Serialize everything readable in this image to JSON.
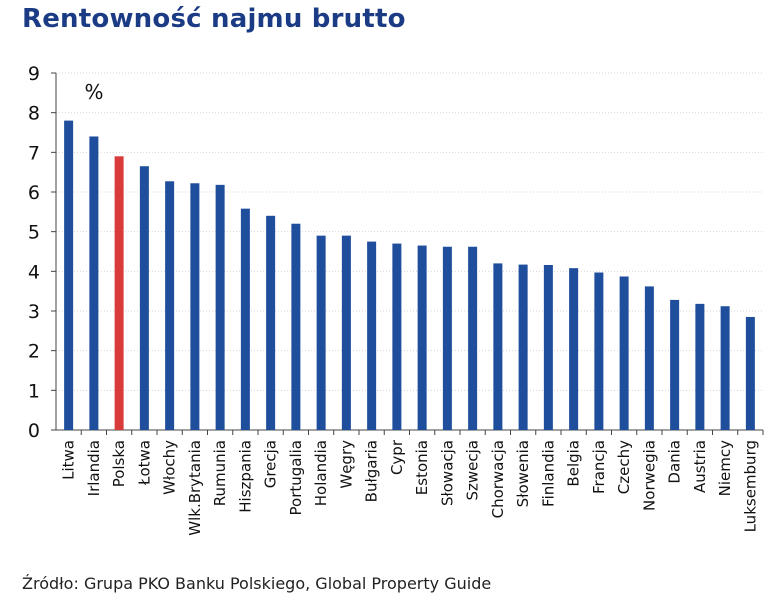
{
  "title": "Rentowność najmu brutto",
  "source": "Źródło: Grupa PKO Banku Polskiego, Global Property Guide",
  "colors": {
    "bar": "#1f4e9c",
    "highlight": "#d93a3a",
    "title": "#1b3c84"
  },
  "chart_data": {
    "type": "bar",
    "unit_label": "%",
    "categories": [
      "Litwa",
      "Irlandia",
      "Polska",
      "Łotwa",
      "Włochy",
      "Wlk.Brytania",
      "Rumunia",
      "Hiszpania",
      "Grecja",
      "Portugalia",
      "Holandia",
      "Węgry",
      "Bułgaria",
      "Cypr",
      "Estonia",
      "Słowacja",
      "Szwecja",
      "Chorwacja",
      "Słowenia",
      "Finlandia",
      "Belgia",
      "Francja",
      "Czechy",
      "Norwegia",
      "Dania",
      "Austria",
      "Niemcy",
      "Luksemburg"
    ],
    "values": [
      7.8,
      7.4,
      6.9,
      6.65,
      6.27,
      6.22,
      6.18,
      5.58,
      5.4,
      5.2,
      4.9,
      4.9,
      4.75,
      4.7,
      4.65,
      4.62,
      4.62,
      4.2,
      4.17,
      4.16,
      4.08,
      3.97,
      3.87,
      3.62,
      3.28,
      3.18,
      3.12,
      2.85
    ],
    "highlight": "Polska",
    "ylim": [
      0,
      9
    ],
    "yticks": [
      "0",
      "1",
      "2",
      "3",
      "4",
      "5",
      "6",
      "7",
      "8",
      "9"
    ],
    "grid": true
  }
}
